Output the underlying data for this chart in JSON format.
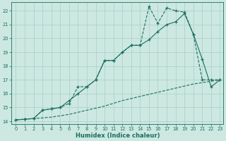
{
  "xlabel": "Humidex (Indice chaleur)",
  "bg_color": "#cce8e0",
  "grid_color": "#a8cfc8",
  "line_color": "#1a6e60",
  "xlim": [
    -0.5,
    23.4
  ],
  "ylim": [
    13.8,
    22.6
  ],
  "xticks": [
    0,
    1,
    2,
    3,
    4,
    5,
    6,
    7,
    8,
    9,
    10,
    11,
    12,
    13,
    14,
    15,
    16,
    17,
    18,
    19,
    20,
    21,
    22,
    23
  ],
  "yticks": [
    14,
    15,
    16,
    17,
    18,
    19,
    20,
    21,
    22
  ],
  "line1_x": [
    0,
    1,
    2,
    3,
    4,
    5,
    6,
    7,
    8,
    9,
    10,
    11,
    12,
    13,
    14,
    15,
    16,
    17,
    18,
    19,
    20,
    21,
    22,
    23
  ],
  "line1_y": [
    14.1,
    14.15,
    14.2,
    14.25,
    14.3,
    14.4,
    14.5,
    14.65,
    14.8,
    14.95,
    15.1,
    15.3,
    15.5,
    15.65,
    15.8,
    15.95,
    16.1,
    16.25,
    16.4,
    16.55,
    16.7,
    16.8,
    16.9,
    17.0
  ],
  "line2_x": [
    0,
    1,
    2,
    3,
    4,
    5,
    6,
    7,
    8,
    9,
    10,
    11,
    12,
    13,
    14,
    15,
    16,
    17,
    18,
    19,
    20,
    21,
    22,
    23
  ],
  "line2_y": [
    14.1,
    14.15,
    14.2,
    14.8,
    14.9,
    15.0,
    15.5,
    16.0,
    16.5,
    17.0,
    18.4,
    18.4,
    19.0,
    19.5,
    19.5,
    19.9,
    20.5,
    21.0,
    21.2,
    21.8,
    20.3,
    18.5,
    16.5,
    17.0
  ],
  "line3_x": [
    0,
    1,
    2,
    3,
    4,
    5,
    6,
    7,
    8,
    9,
    10,
    11,
    12,
    13,
    14,
    15,
    16,
    17,
    18,
    19,
    20,
    21,
    22,
    23
  ],
  "line3_y": [
    14.1,
    14.15,
    14.2,
    14.8,
    14.9,
    15.0,
    15.3,
    16.5,
    16.5,
    17.0,
    18.4,
    18.4,
    19.0,
    19.5,
    19.5,
    22.3,
    21.1,
    22.2,
    22.0,
    21.9,
    20.3,
    17.0,
    17.0,
    17.0
  ]
}
